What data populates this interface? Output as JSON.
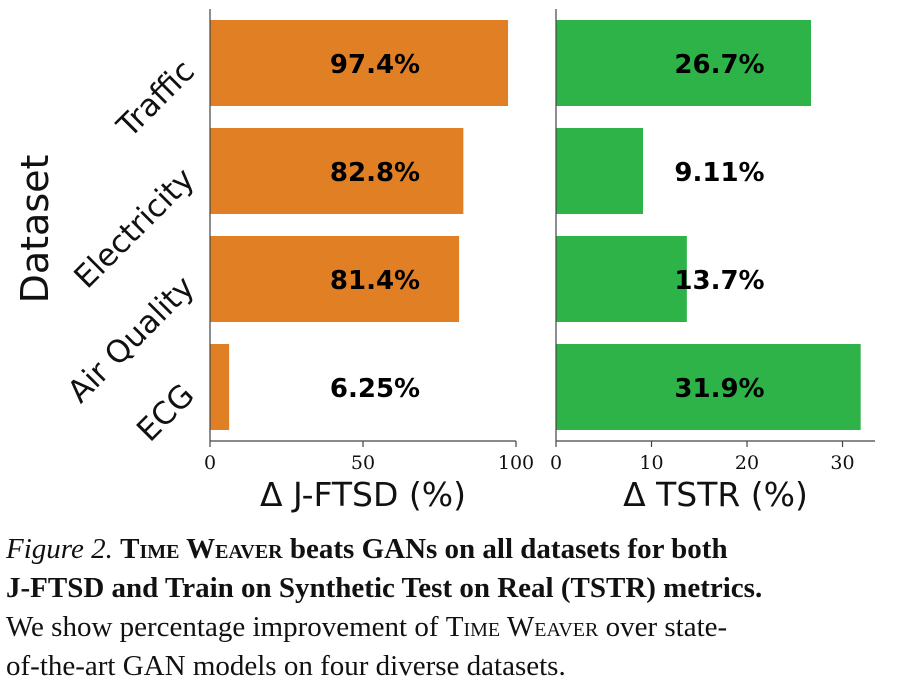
{
  "chart_data": [
    {
      "type": "bar",
      "orientation": "horizontal",
      "categories": [
        "Traffic",
        "Electricity",
        "Air Quality",
        "ECG"
      ],
      "values": [
        97.4,
        82.8,
        81.4,
        6.25
      ],
      "value_labels": [
        "97.4%",
        "82.8%",
        "81.4%",
        "6.25%"
      ],
      "xlabel": "Δ J-FTSD (%)",
      "ylabel": "Dataset",
      "xlim": [
        0,
        100
      ],
      "xticks": [
        0,
        50,
        100
      ],
      "color": "#e07f24",
      "grid": false
    },
    {
      "type": "bar",
      "orientation": "horizontal",
      "categories": [
        "Traffic",
        "Electricity",
        "Air Quality",
        "ECG"
      ],
      "values": [
        26.7,
        9.11,
        13.7,
        31.9
      ],
      "value_labels": [
        "26.7%",
        "9.11%",
        "13.7%",
        "31.9%"
      ],
      "xlabel": "Δ TSTR (%)",
      "ylabel": "",
      "xlim": [
        0,
        33.4
      ],
      "xticks": [
        0,
        10,
        20,
        30
      ],
      "color": "#2db347",
      "grid": false
    }
  ],
  "caption": {
    "label": "Figure 2.",
    "bold_sc": "Time Weaver",
    "bold_1": " beats GANs on all datasets for both",
    "bold_2": "J-FTSD and Train on Synthetic Test on Real (TSTR) metrics.",
    "text_1": "We show percentage improvement of ",
    "text_sc": "Time Weaver",
    "text_2": " over state-",
    "text_3": "of-the-art GAN models on four diverse datasets."
  }
}
